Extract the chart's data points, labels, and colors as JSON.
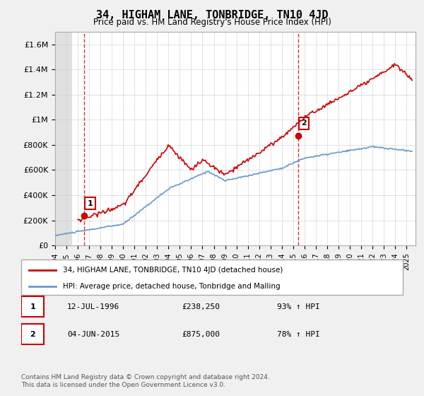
{
  "title": "34, HIGHAM LANE, TONBRIDGE, TN10 4JD",
  "subtitle": "Price paid vs. HM Land Registry's House Price Index (HPI)",
  "ylim": [
    0,
    1700000
  ],
  "yticks": [
    0,
    200000,
    400000,
    600000,
    800000,
    1000000,
    1200000,
    1400000,
    1600000
  ],
  "ytick_labels": [
    "£0",
    "£200K",
    "£400K",
    "£600K",
    "£800K",
    "£1M",
    "£1.2M",
    "£1.4M",
    "£1.6M"
  ],
  "sale1_date": 1996.54,
  "sale1_price": 238250,
  "sale1_label": "1",
  "sale2_date": 2015.42,
  "sale2_price": 875000,
  "sale2_label": "2",
  "property_color": "#cc0000",
  "hpi_color": "#6699cc",
  "legend_property": "34, HIGHAM LANE, TONBRIDGE, TN10 4JD (detached house)",
  "legend_hpi": "HPI: Average price, detached house, Tonbridge and Malling",
  "annotation1_date": "12-JUL-1996",
  "annotation1_price": "£238,250",
  "annotation1_hpi": "93% ↑ HPI",
  "annotation2_date": "04-JUN-2015",
  "annotation2_price": "£875,000",
  "annotation2_hpi": "78% ↑ HPI",
  "footer": "Contains HM Land Registry data © Crown copyright and database right 2024.\nThis data is licensed under the Open Government Licence v3.0.",
  "background_color": "#f0f0f0",
  "plot_bg_color": "#ffffff",
  "grid_color": "#cccccc",
  "hatch_color": "#dddddd"
}
